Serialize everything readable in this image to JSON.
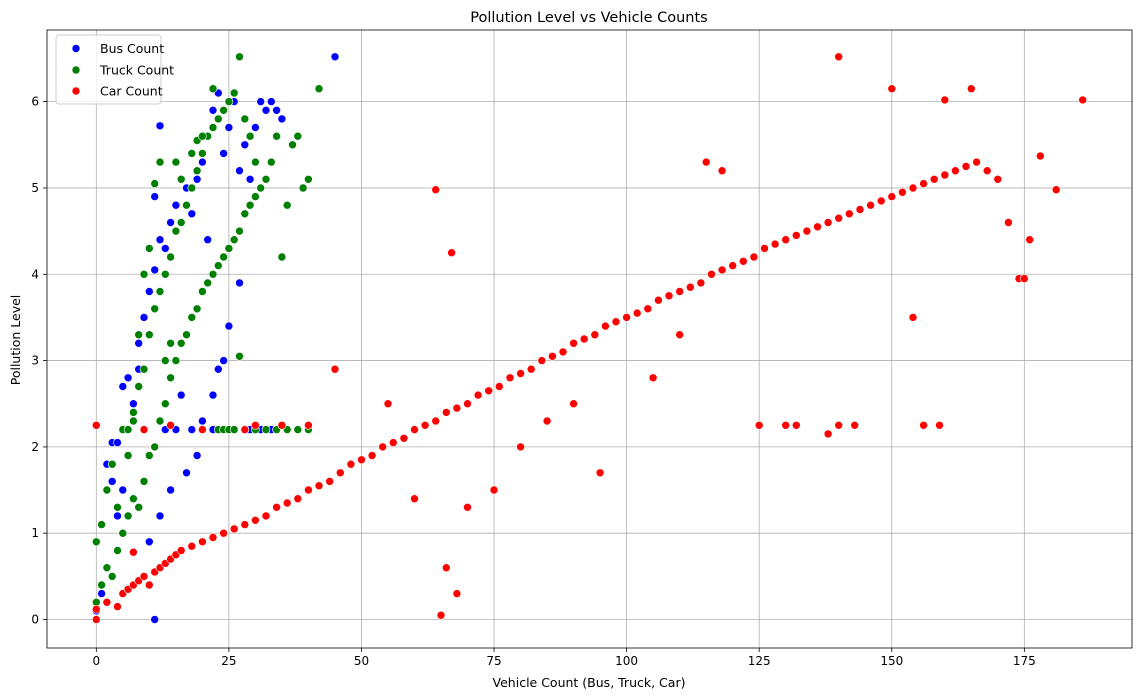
{
  "colors": {
    "bus": "#0000ff",
    "truck": "#008000",
    "car": "#ff0000",
    "grid": "#b0b0b0",
    "axis": "#000000"
  },
  "chart_data": {
    "type": "scatter",
    "title": "Pollution Level vs Vehicle Counts",
    "xlabel": "Vehicle Count (Bus, Truck, Car)",
    "ylabel": "Pollution Level",
    "xlim": [
      -9.3,
      195.3
    ],
    "ylim": [
      -0.33,
      6.83
    ],
    "grid": true,
    "legend_position": "top-left",
    "x_ticks": [
      0,
      25,
      50,
      75,
      100,
      125,
      150,
      175
    ],
    "x_tick_labels": [
      "0",
      "25",
      "50",
      "75",
      "100",
      "125",
      "150",
      "175"
    ],
    "y_ticks": [
      0,
      1,
      2,
      3,
      4,
      5,
      6
    ],
    "y_tick_labels": [
      "0",
      "1",
      "2",
      "3",
      "4",
      "5",
      "6"
    ],
    "series": [
      {
        "name": "Bus Count",
        "color": "#0000ff",
        "x": [
          0,
          1,
          2,
          2,
          3,
          4,
          5,
          5,
          6,
          7,
          8,
          8,
          9,
          10,
          11,
          11,
          12,
          13,
          14,
          15,
          16,
          17,
          18,
          19,
          20,
          21,
          22,
          23,
          24,
          25,
          26,
          27,
          28,
          29,
          30,
          31,
          32,
          33,
          34,
          35,
          45,
          11,
          12,
          13,
          15,
          18,
          22,
          24,
          26,
          28,
          29,
          30,
          31,
          33,
          34,
          27,
          25,
          24,
          23,
          22,
          20,
          19,
          17,
          14,
          12,
          10,
          4,
          3,
          16,
          21
        ],
        "y": [
          0.1,
          0.3,
          0.6,
          1.8,
          2.05,
          1.2,
          1.5,
          2.7,
          2.8,
          2.5,
          2.9,
          3.2,
          3.5,
          3.8,
          4.05,
          4.9,
          4.4,
          4.3,
          4.6,
          4.8,
          5.1,
          5.0,
          4.7,
          5.1,
          5.3,
          5.6,
          5.9,
          6.1,
          5.4,
          5.7,
          6.0,
          5.2,
          5.5,
          5.1,
          5.7,
          6.0,
          5.9,
          6.0,
          5.9,
          5.8,
          6.52,
          0.0,
          5.72,
          2.2,
          2.2,
          2.2,
          2.2,
          2.2,
          2.2,
          2.2,
          2.2,
          2.2,
          2.2,
          2.2,
          2.2,
          3.9,
          3.4,
          3.0,
          2.9,
          2.6,
          2.3,
          1.9,
          1.7,
          1.5,
          1.2,
          0.9,
          2.05,
          1.6,
          2.6,
          4.4
        ]
      },
      {
        "name": "Truck Count",
        "color": "#008000",
        "x": [
          0,
          0,
          1,
          1,
          2,
          2,
          3,
          3,
          4,
          4,
          5,
          5,
          6,
          6,
          7,
          7,
          8,
          8,
          9,
          9,
          10,
          10,
          11,
          11,
          12,
          12,
          13,
          13,
          14,
          14,
          15,
          15,
          16,
          16,
          17,
          17,
          18,
          18,
          19,
          19,
          20,
          20,
          21,
          21,
          22,
          22,
          23,
          23,
          24,
          24,
          25,
          25,
          26,
          26,
          27,
          27,
          28,
          28,
          29,
          29,
          30,
          30,
          31,
          32,
          33,
          34,
          35,
          36,
          37,
          38,
          39,
          40,
          42,
          27,
          22,
          23,
          24,
          25,
          26,
          28,
          30,
          32,
          34,
          36,
          38,
          40,
          12,
          11,
          10,
          9,
          8,
          15,
          16,
          18,
          19,
          20,
          14,
          13,
          6,
          7
        ],
        "y": [
          0.2,
          0.9,
          0.4,
          1.1,
          0.6,
          1.5,
          0.5,
          1.8,
          0.8,
          1.3,
          1.0,
          2.2,
          1.2,
          1.9,
          1.4,
          2.4,
          1.3,
          2.7,
          1.6,
          2.9,
          1.9,
          3.3,
          2.0,
          3.6,
          2.3,
          3.8,
          2.5,
          4.0,
          2.8,
          4.2,
          3.0,
          4.5,
          3.2,
          4.6,
          3.3,
          4.8,
          3.5,
          5.0,
          3.6,
          5.2,
          3.8,
          5.4,
          3.9,
          5.6,
          4.0,
          5.7,
          4.1,
          5.8,
          4.2,
          5.9,
          4.3,
          6.0,
          4.4,
          6.1,
          4.5,
          6.52,
          4.7,
          5.8,
          4.8,
          5.6,
          4.9,
          5.3,
          5.0,
          5.1,
          5.3,
          5.6,
          4.2,
          4.8,
          5.5,
          5.6,
          5.0,
          5.1,
          6.15,
          3.05,
          6.15,
          2.2,
          2.2,
          2.2,
          2.2,
          2.2,
          2.2,
          2.2,
          2.2,
          2.2,
          2.2,
          2.2,
          5.3,
          5.05,
          4.3,
          4.0,
          3.3,
          5.3,
          5.1,
          5.4,
          5.55,
          5.6,
          3.2,
          3.0,
          2.2,
          2.3
        ]
      },
      {
        "name": "Car Count",
        "color": "#ff0000",
        "x": [
          0,
          0,
          2,
          4,
          5,
          6,
          7,
          8,
          9,
          10,
          11,
          12,
          13,
          14,
          15,
          16,
          18,
          20,
          22,
          24,
          26,
          28,
          30,
          32,
          34,
          36,
          38,
          40,
          42,
          44,
          46,
          48,
          50,
          52,
          54,
          56,
          58,
          60,
          62,
          64,
          66,
          68,
          70,
          72,
          74,
          76,
          78,
          80,
          82,
          84,
          86,
          88,
          90,
          92,
          94,
          96,
          98,
          100,
          102,
          104,
          106,
          108,
          110,
          112,
          114,
          116,
          118,
          120,
          122,
          124,
          126,
          128,
          130,
          132,
          134,
          136,
          138,
          140,
          142,
          144,
          146,
          148,
          150,
          152,
          154,
          156,
          158,
          160,
          162,
          164,
          166,
          168,
          170,
          172,
          174,
          176,
          178,
          181,
          186,
          65,
          64,
          66,
          68,
          67,
          95,
          125,
          130,
          132,
          138,
          140,
          143,
          156,
          159,
          154,
          175,
          7,
          9,
          14,
          0,
          30,
          40,
          20,
          28,
          35,
          45,
          55,
          60,
          70,
          75,
          80,
          85,
          90,
          105,
          110,
          115,
          118,
          140,
          150,
          160,
          165
        ],
        "y": [
          0.0,
          0.12,
          0.2,
          0.15,
          0.3,
          0.35,
          0.4,
          0.45,
          0.5,
          0.4,
          0.55,
          0.6,
          0.65,
          0.7,
          0.75,
          0.8,
          0.85,
          0.9,
          0.95,
          1.0,
          1.05,
          1.1,
          1.15,
          1.2,
          1.3,
          1.35,
          1.4,
          1.5,
          1.55,
          1.6,
          1.7,
          1.8,
          1.85,
          1.9,
          2.0,
          2.05,
          2.1,
          2.2,
          2.25,
          2.3,
          2.4,
          2.45,
          2.5,
          2.6,
          2.65,
          2.7,
          2.8,
          2.85,
          2.9,
          3.0,
          3.05,
          3.1,
          3.2,
          3.25,
          3.3,
          3.4,
          3.45,
          3.5,
          3.55,
          3.6,
          3.7,
          3.75,
          3.8,
          3.85,
          3.9,
          4.0,
          4.05,
          4.1,
          4.15,
          4.2,
          4.3,
          4.35,
          4.4,
          4.45,
          4.5,
          4.55,
          4.6,
          4.65,
          4.7,
          4.75,
          4.8,
          4.85,
          4.9,
          4.95,
          5.0,
          5.05,
          5.1,
          5.15,
          5.2,
          5.25,
          5.3,
          5.2,
          5.1,
          4.6,
          3.95,
          4.4,
          5.37,
          4.98,
          6.02,
          0.05,
          4.98,
          0.6,
          0.3,
          4.25,
          1.7,
          2.25,
          2.25,
          2.25,
          2.15,
          2.25,
          2.25,
          2.25,
          2.25,
          3.5,
          3.95,
          0.78,
          2.2,
          2.25,
          2.25,
          2.25,
          2.25,
          2.2,
          2.2,
          2.25,
          2.9,
          2.5,
          1.4,
          1.3,
          1.5,
          2.0,
          2.3,
          2.5,
          2.8,
          3.3,
          5.3,
          5.2,
          6.52,
          6.15,
          6.02,
          6.15
        ]
      }
    ]
  }
}
